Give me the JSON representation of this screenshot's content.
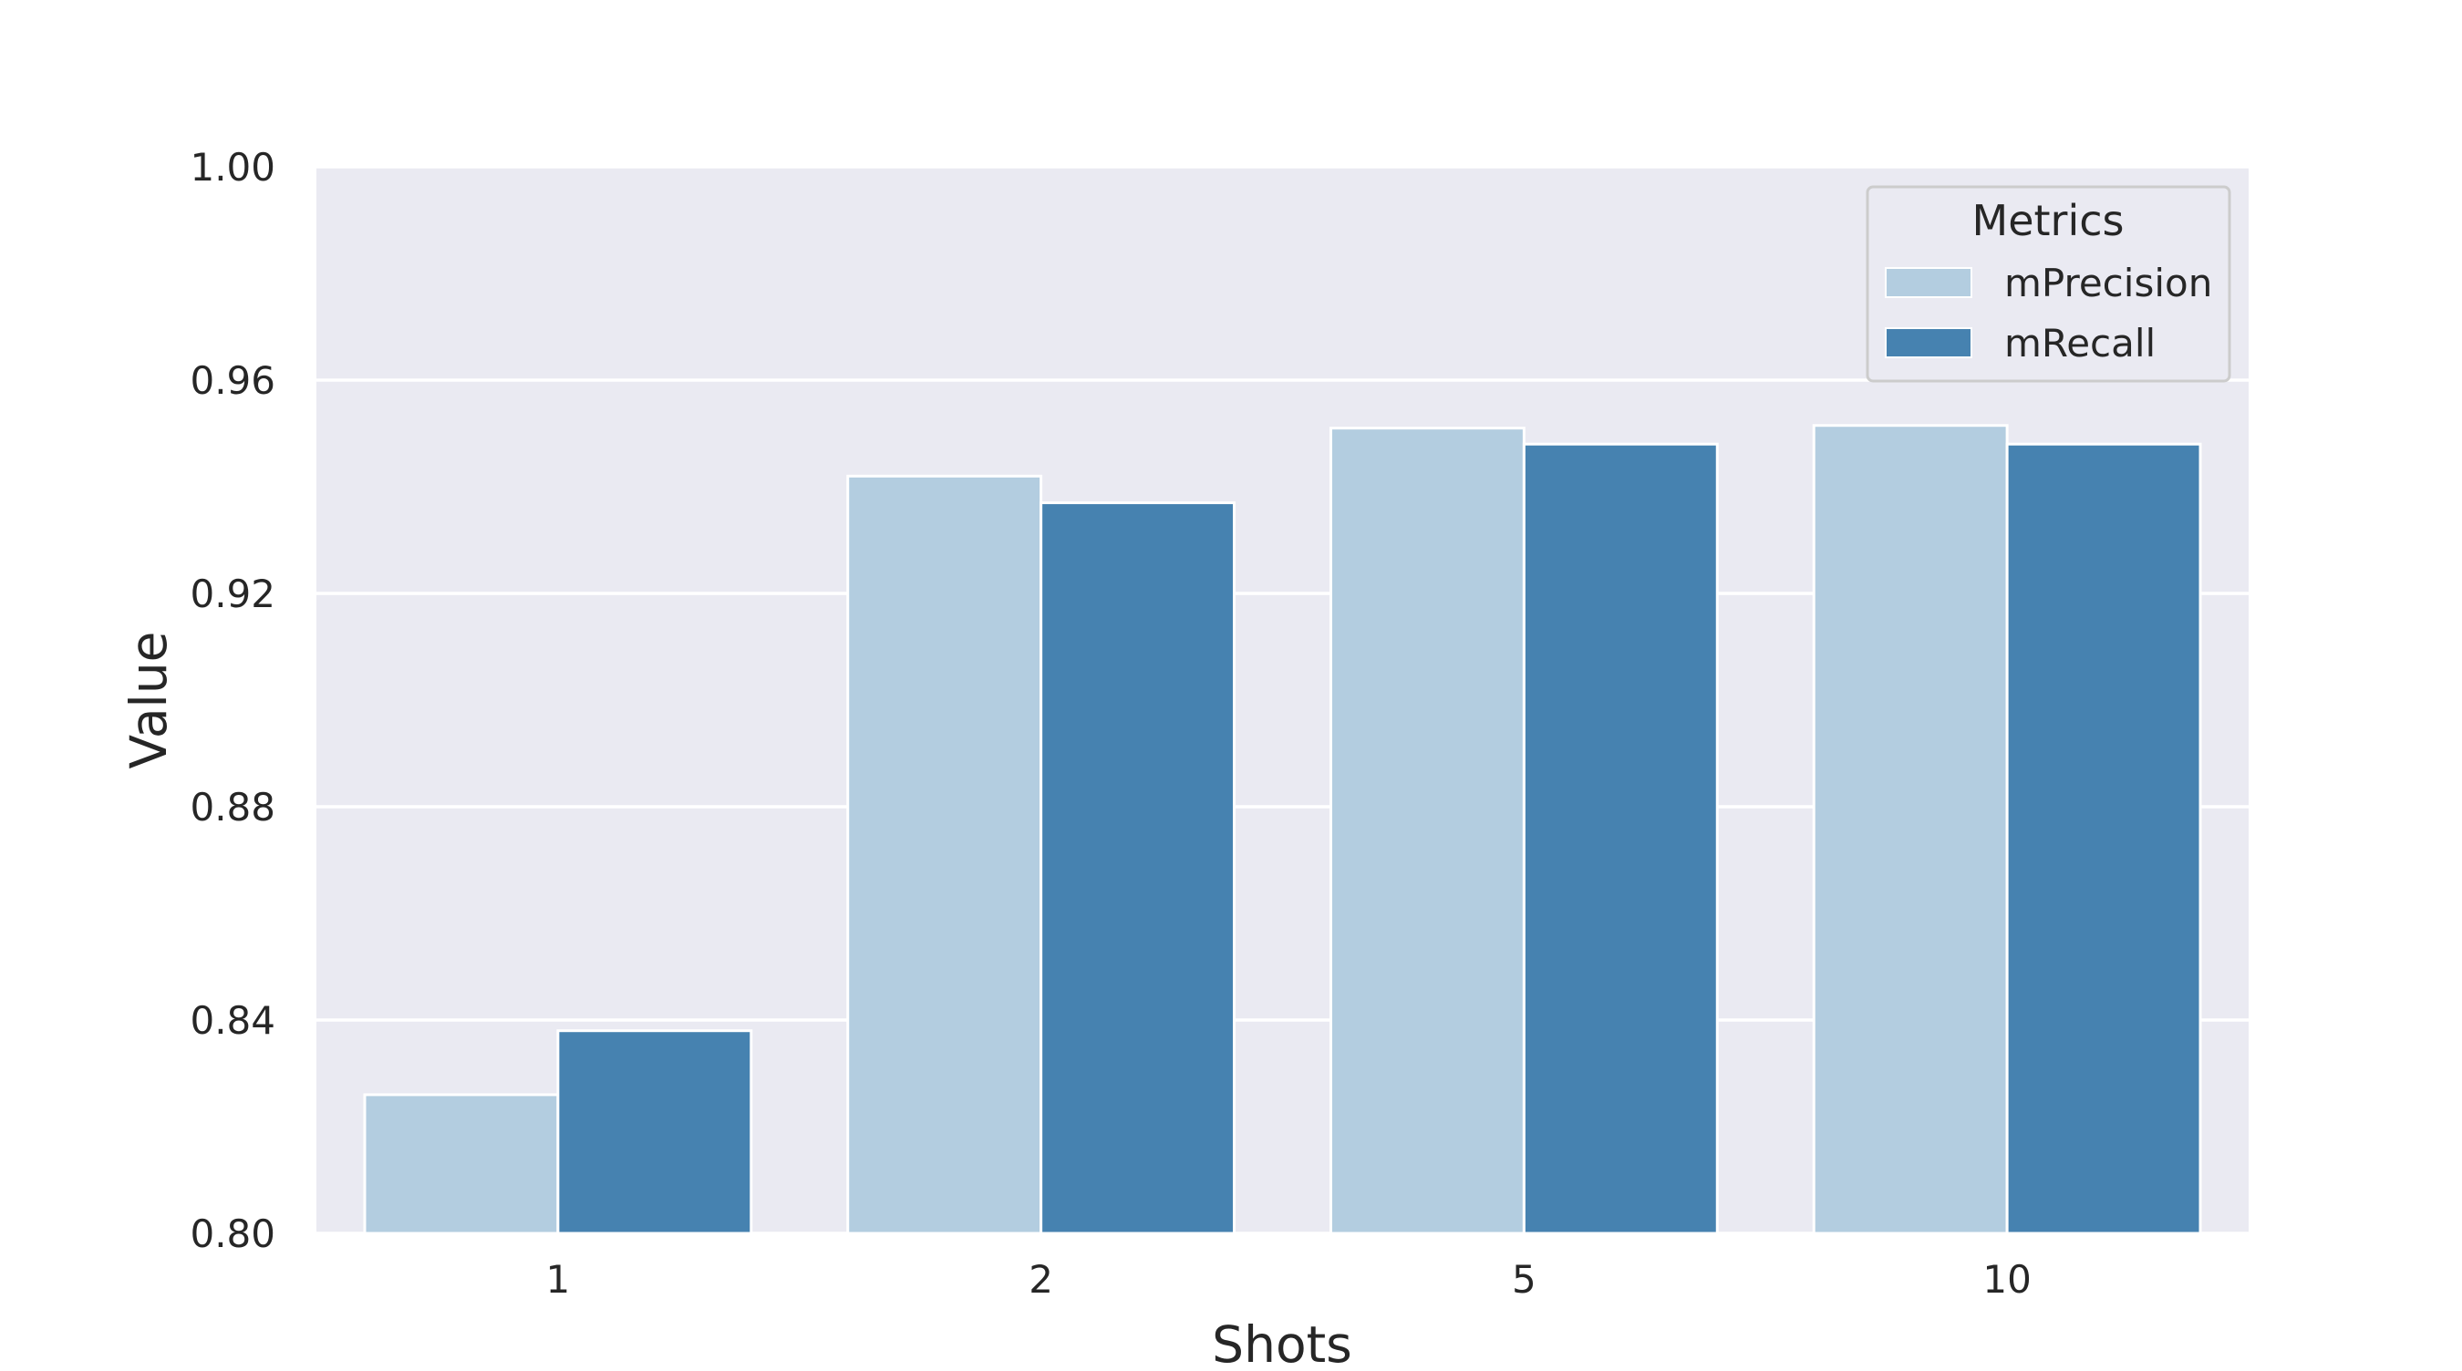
{
  "chart_data": {
    "type": "bar",
    "xlabel": "Shots",
    "ylabel": "Value",
    "categories": [
      "1",
      "2",
      "5",
      "10"
    ],
    "series": [
      {
        "name": "mPrecision",
        "values": [
          0.826,
          0.942,
          0.951,
          0.9515
        ],
        "color": "#b3cde0"
      },
      {
        "name": "mRecall",
        "values": [
          0.838,
          0.937,
          0.948,
          0.948
        ],
        "color": "#4682b0"
      }
    ],
    "ylim": [
      0.8,
      1.0
    ],
    "yticks": [
      "0.80",
      "0.84",
      "0.88",
      "0.92",
      "0.96",
      "1.00"
    ],
    "legend": {
      "title": "Metrics",
      "placement": "top-right"
    },
    "grid": true,
    "background_color": "#eaeaf2"
  }
}
